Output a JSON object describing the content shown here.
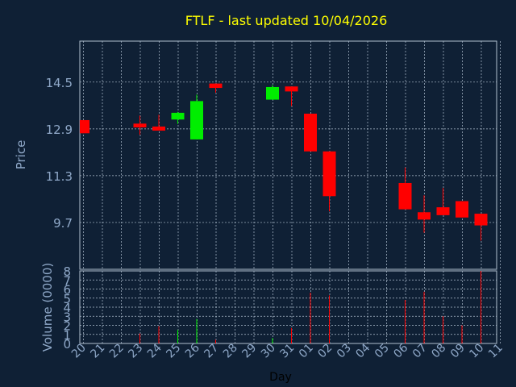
{
  "colors": {
    "background": "#0f2035",
    "title": "#ffff00",
    "axis_text": "#8fa8c8",
    "grid": "#b0c0d0",
    "up": "#00ee00",
    "down": "#ff0000"
  },
  "chart_data": {
    "type": "candlestick",
    "title": "FTLF - last updated 10/04/2026",
    "xlabel": "Day",
    "ylabel": "Price",
    "volume_label": "Volume (0000)",
    "grid": true,
    "x_ticks": [
      "20",
      "21",
      "22",
      "23",
      "24",
      "25",
      "26",
      "27",
      "28",
      "29",
      "30",
      "31",
      "01",
      "02",
      "03",
      "04",
      "05",
      "06",
      "07",
      "08",
      "09",
      "10",
      "11"
    ],
    "price_ticks": [
      9.7,
      11.3,
      12.9,
      14.5
    ],
    "price_tick_labels": [
      "9.7",
      "11.3",
      "12.9",
      "14.5"
    ],
    "price_range": [
      8.1,
      15.9
    ],
    "volume_ticks": [
      "0",
      "1",
      "2",
      "3",
      "4",
      "5",
      "6",
      "7",
      "8"
    ],
    "volume_range": [
      0,
      8
    ],
    "candles": [
      {
        "day": "20",
        "open": 13.2,
        "close": 12.75,
        "high": 13.2,
        "low": 12.75,
        "volume": 0
      },
      {
        "day": "23",
        "open": 13.08,
        "close": 12.95,
        "high": 13.35,
        "low": 12.7,
        "volume": 1.1
      },
      {
        "day": "24",
        "open": 12.98,
        "close": 12.84,
        "high": 13.38,
        "low": 12.84,
        "volume": 1.9
      },
      {
        "day": "25",
        "open": 13.22,
        "close": 13.45,
        "high": 13.48,
        "low": 13.07,
        "volume": 1.5
      },
      {
        "day": "26",
        "open": 12.54,
        "close": 13.85,
        "high": 14.07,
        "low": 12.54,
        "volume": 2.7
      },
      {
        "day": "27",
        "open": 14.45,
        "close": 14.3,
        "high": 14.45,
        "low": 14.14,
        "volume": 0.4
      },
      {
        "day": "30",
        "open": 13.9,
        "close": 14.33,
        "high": 14.4,
        "low": 13.9,
        "volume": 0.6
      },
      {
        "day": "31",
        "open": 14.35,
        "close": 14.18,
        "high": 14.35,
        "low": 13.68,
        "volume": 1.7
      },
      {
        "day": "01",
        "open": 13.42,
        "close": 12.13,
        "high": 13.42,
        "low": 12.13,
        "volume": 5.6
      },
      {
        "day": "02",
        "open": 12.13,
        "close": 10.6,
        "high": 12.13,
        "low": 10.08,
        "volume": 5.3
      },
      {
        "day": "06",
        "open": 11.05,
        "close": 10.15,
        "high": 11.58,
        "low": 10.15,
        "volume": 4.8
      },
      {
        "day": "07",
        "open": 10.05,
        "close": 9.8,
        "high": 10.63,
        "low": 9.35,
        "volume": 5.7
      },
      {
        "day": "08",
        "open": 10.22,
        "close": 9.95,
        "high": 10.88,
        "low": 9.95,
        "volume": 3.0
      },
      {
        "day": "09",
        "open": 10.43,
        "close": 9.87,
        "high": 10.43,
        "low": 9.87,
        "volume": 2.0
      },
      {
        "day": "10",
        "open": 10.0,
        "close": 9.6,
        "high": 10.0,
        "low": 9.08,
        "volume": 8.0
      }
    ]
  }
}
